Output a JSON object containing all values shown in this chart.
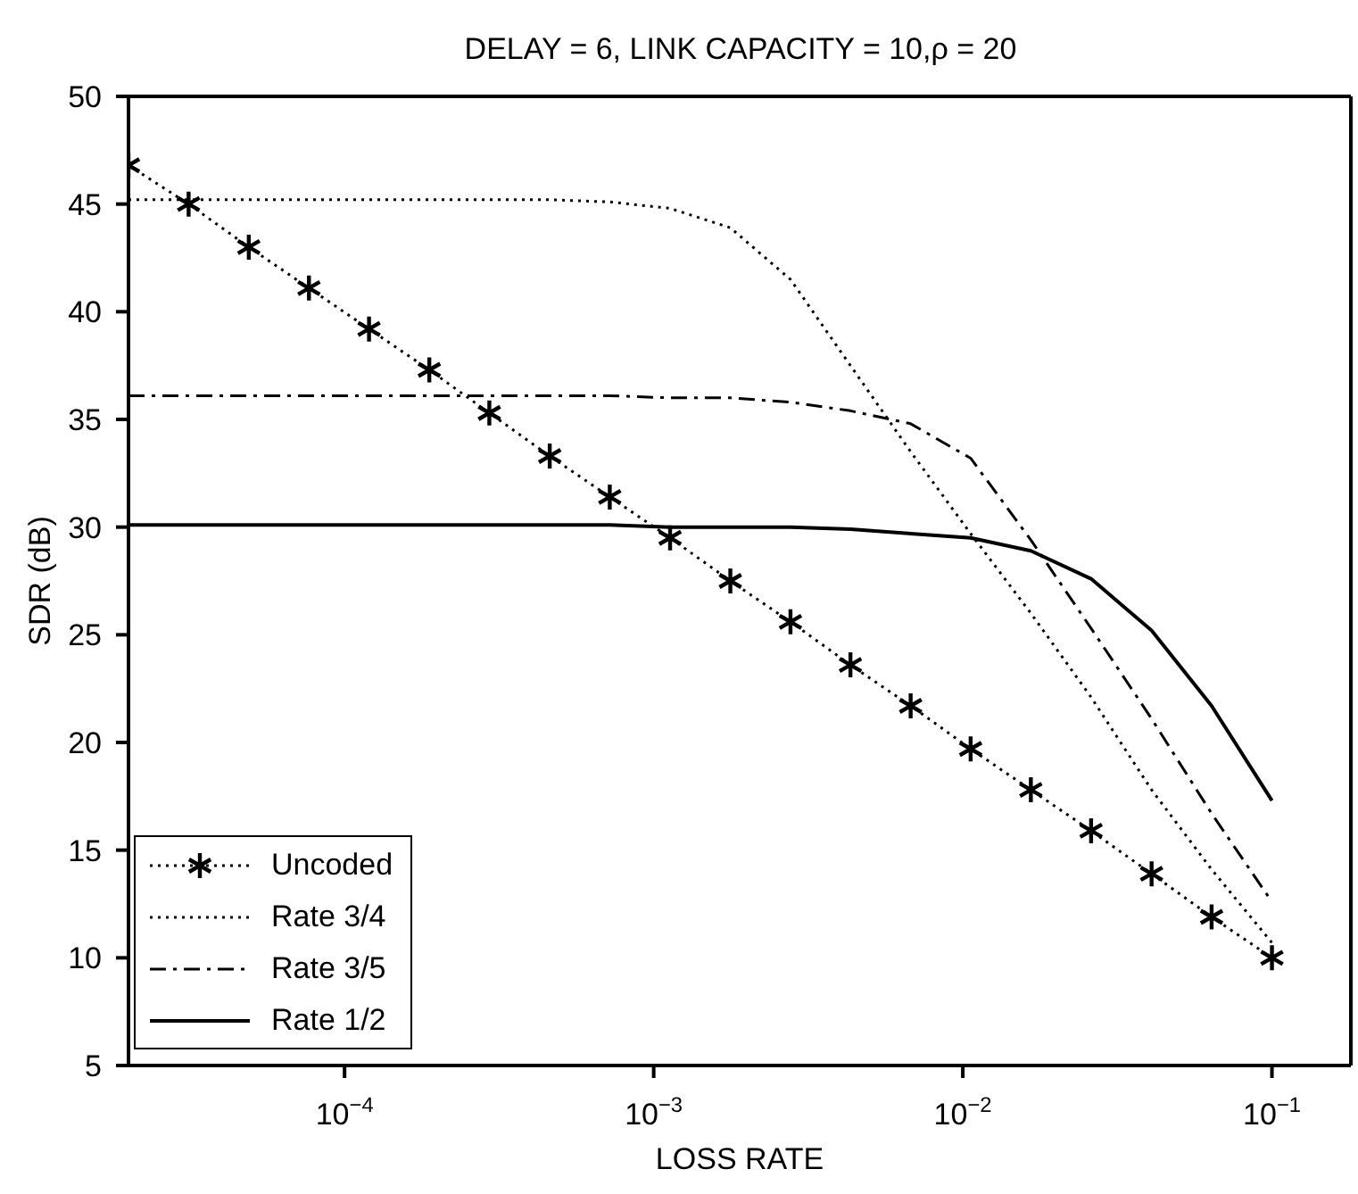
{
  "chart_data": {
    "type": "line",
    "title": "DELAY = 6, LINK CAPACITY = 10,ρ = 20",
    "xlabel": "LOSS RATE",
    "ylabel": "SDR (dB)",
    "x": [
      2e-05,
      3.13e-05,
      4.9e-05,
      7.67e-05,
      0.00012,
      0.000188,
      0.000294,
      0.000461,
      0.000721,
      0.00113,
      0.00177,
      0.00277,
      0.00433,
      0.00678,
      0.0106,
      0.0166,
      0.026,
      0.0408,
      0.0638,
      0.1
    ],
    "series": [
      {
        "name": "Uncoded",
        "color": "#000000",
        "marker": "cross",
        "line_style": "dotted",
        "values": [
          46.8,
          45,
          43,
          41.1,
          39.2,
          37.3,
          35.3,
          33.3,
          31.4,
          29.5,
          27.5,
          25.6,
          23.6,
          21.7,
          19.7,
          17.8,
          15.9,
          13.9,
          11.9,
          10
        ]
      },
      {
        "name": "Rate 3/4",
        "color": "#000000",
        "marker": "none",
        "line_style": "dotted",
        "values": [
          45.2,
          45.2,
          45.2,
          45.2,
          45.2,
          45.2,
          45.2,
          45.2,
          45.1,
          44.8,
          43.9,
          41.5,
          37.5,
          33.5,
          29.7,
          26.0,
          22.1,
          17.8,
          14.1,
          10.7
        ]
      },
      {
        "name": "Rate 3/5",
        "color": "#000000",
        "marker": "none",
        "line_style": "dashdot",
        "values": [
          36.1,
          36.1,
          36.1,
          36.1,
          36.1,
          36.1,
          36.1,
          36.1,
          36.1,
          36.0,
          36.0,
          35.8,
          35.4,
          34.8,
          33.2,
          29.4,
          25.3,
          21.1,
          16.7,
          12.6
        ]
      },
      {
        "name": "Rate 1/2",
        "color": "#000000",
        "marker": "none",
        "line_style": "solid",
        "values": [
          30.1,
          30.1,
          30.1,
          30.1,
          30.1,
          30.1,
          30.1,
          30.1,
          30.1,
          30.0,
          30.0,
          30.0,
          29.9,
          29.7,
          29.5,
          28.9,
          27.6,
          25.2,
          21.7,
          17.3
        ]
      }
    ],
    "log": "x",
    "xlim": [
      2e-05,
      0.18
    ],
    "xticks": [
      {
        "value": 0.0001,
        "label": "10$^{−4}$"
      },
      {
        "value": 0.001,
        "label": "10$^{−3}$"
      },
      {
        "value": 0.01,
        "label": "10$^{−2}$"
      },
      {
        "value": 0.1,
        "label": "10$^{−1}$"
      }
    ],
    "ylim": [
      5,
      50
    ],
    "yticks": [
      5,
      10,
      15,
      20,
      25,
      30,
      35,
      40,
      45,
      50
    ],
    "grid": false,
    "legend": "bottom left"
  }
}
